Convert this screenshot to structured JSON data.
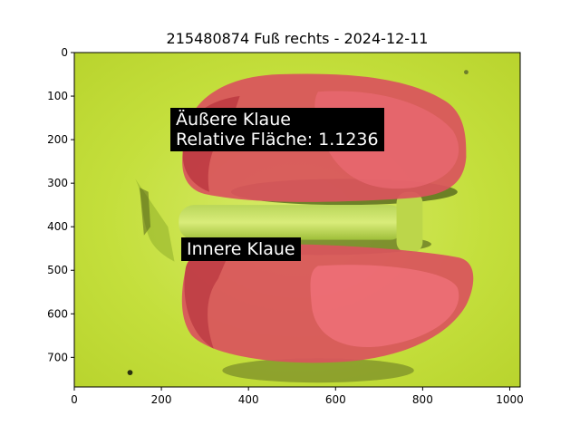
{
  "figure": {
    "title": "215480874 Fuß rechts - 2024-12-11",
    "image_extent": {
      "x": [
        0,
        1024
      ],
      "y": [
        0,
        768
      ]
    },
    "x_ticks": [
      0,
      200,
      400,
      600,
      800,
      1000
    ],
    "y_ticks": [
      0,
      100,
      200,
      300,
      400,
      500,
      600,
      700
    ],
    "colors": {
      "background": "#c7e23a",
      "mask": "#d8525a",
      "mask_dark": "#b8343e",
      "shadow": "#5a6a1e"
    }
  },
  "annotations": {
    "outer_claw": {
      "line1": "Äußere Klaue",
      "line2": "Relative Fläche: 1.1236"
    },
    "inner_claw": {
      "line1": "Innere Klaue"
    }
  }
}
